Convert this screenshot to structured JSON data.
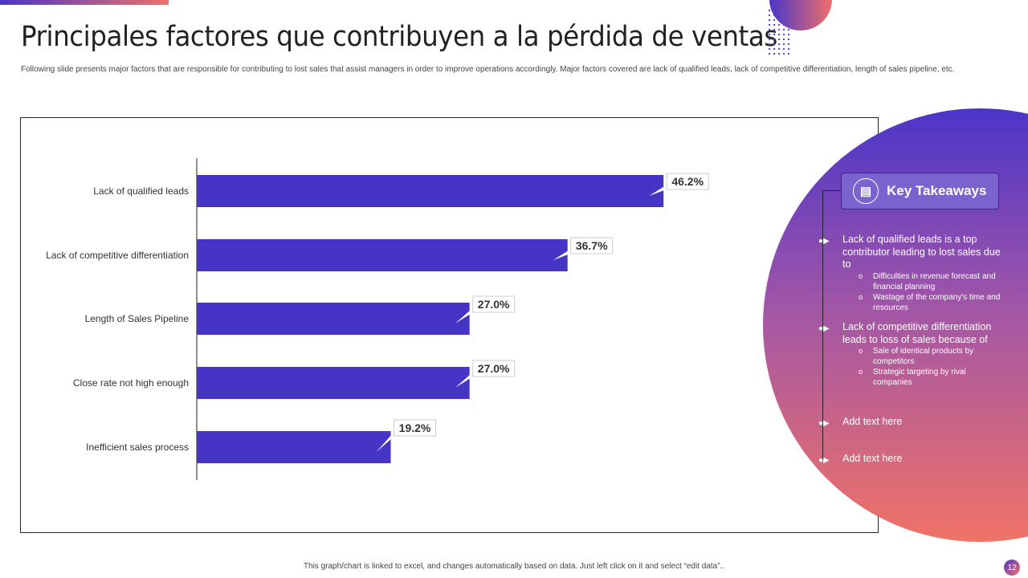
{
  "title": "Principales factores que contribuyen a la pérdida de ventas",
  "subtitle": "Following slide presents major factors that are responsible for contributing to lost sales that assist managers in order to improve operations accordingly. Major factors covered are lack of qualified leads, lack of competitive differentiation, length of sales pipeline, etc.",
  "colors": {
    "bar": "#4634c4",
    "accent_start": "#4a35c8",
    "accent_end": "#f0706a"
  },
  "chart_data": {
    "type": "bar",
    "orientation": "horizontal",
    "categories": [
      "Lack of qualified leads",
      "Lack of competitive differentiation",
      "Length of Sales Pipeline",
      "Close rate not high enough",
      "Inefficient sales process"
    ],
    "values": [
      46.2,
      36.7,
      27.0,
      27.0,
      19.2
    ],
    "data_labels": [
      "46.2%",
      "36.7%",
      "27.0%",
      "27.0%",
      "19.2%"
    ],
    "unit": "%",
    "grid": false
  },
  "takeaways": {
    "icon": "notepad-icon",
    "heading": "Key Takeaways",
    "items": [
      {
        "text": "Lack of qualified leads is a top contributor leading to lost sales due to",
        "sub": [
          "Difficulties in revenue forecast and financial planning",
          "Wastage of the company's time and resources"
        ]
      },
      {
        "text": "Lack of competitive differentiation leads to loss of sales because of",
        "sub": [
          "Sale of identical products by competitors",
          "Strategic targeting by rival companies"
        ]
      },
      {
        "text": "Add text here",
        "sub": []
      },
      {
        "text": "Add text here",
        "sub": []
      }
    ]
  },
  "footer": "This graph/chart is linked to excel, and changes automatically based on data. Just left click on it and select “edit data”..",
  "page_number": "12"
}
